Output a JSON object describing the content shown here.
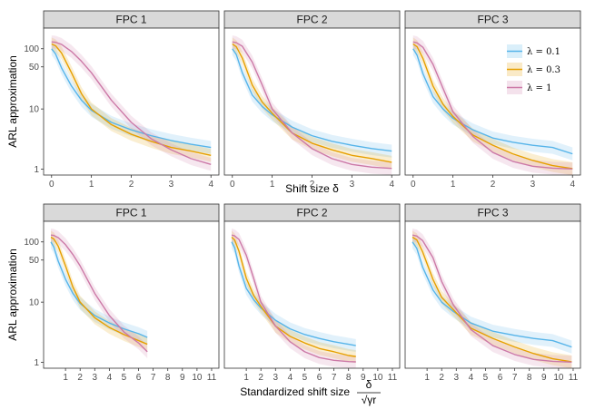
{
  "chart_data": [
    {
      "type": "line",
      "row": "top",
      "xlabel": "Shift size δ",
      "ylabel": "ARL approximation",
      "yscale": "log",
      "ylim": [
        0.8,
        220
      ],
      "xlim": [
        -0.2,
        4.2
      ],
      "xticks": [
        0,
        1,
        2,
        3,
        4
      ],
      "yticks": [
        1,
        10,
        50,
        100
      ],
      "legend": {
        "placement": "top-right",
        "entries": [
          "λ = 0.1",
          "λ = 0.3",
          "λ = 1"
        ]
      },
      "panels": [
        {
          "title": "FPC 1",
          "series": [
            {
              "name": "λ = 0.1",
              "color": "#56B4E9",
              "x": [
                0,
                0.1,
                0.25,
                0.5,
                0.75,
                1,
                1.5,
                2,
                2.5,
                3,
                3.5,
                4
              ],
              "y": [
                100,
                82,
                48,
                24,
                14,
                9.5,
                6.0,
                4.5,
                3.6,
                3.0,
                2.6,
                2.3
              ]
            },
            {
              "name": "λ = 0.3",
              "color": "#E69F00",
              "x": [
                0,
                0.1,
                0.25,
                0.5,
                0.75,
                1,
                1.5,
                2,
                2.5,
                3,
                3.5,
                4
              ],
              "y": [
                120,
                112,
                85,
                40,
                18,
                10,
                5.5,
                3.8,
                2.9,
                2.3,
                2.0,
                1.7
              ]
            },
            {
              "name": "λ = 1",
              "color": "#CC79A7",
              "x": [
                0,
                0.1,
                0.25,
                0.5,
                0.75,
                1,
                1.5,
                2,
                2.5,
                3,
                3.5,
                4
              ],
              "y": [
                130,
                128,
                118,
                90,
                62,
                40,
                14,
                6.0,
                3.2,
                2.1,
                1.5,
                1.2
              ]
            }
          ]
        },
        {
          "title": "FPC 2",
          "series": [
            {
              "name": "λ = 0.1",
              "color": "#56B4E9",
              "x": [
                0,
                0.1,
                0.25,
                0.5,
                0.75,
                1,
                1.5,
                2,
                2.5,
                3,
                3.5,
                4
              ],
              "y": [
                100,
                80,
                40,
                17,
                11,
                8.0,
                5.0,
                3.6,
                2.9,
                2.5,
                2.2,
                2.0
              ]
            },
            {
              "name": "λ = 0.3",
              "color": "#E69F00",
              "x": [
                0,
                0.1,
                0.25,
                0.5,
                0.75,
                1,
                1.5,
                2,
                2.5,
                3,
                3.5,
                4
              ],
              "y": [
                120,
                108,
                70,
                25,
                13,
                8.5,
                4.0,
                2.7,
                2.1,
                1.7,
                1.5,
                1.3
              ]
            },
            {
              "name": "λ = 1",
              "color": "#CC79A7",
              "x": [
                0,
                0.1,
                0.25,
                0.5,
                0.75,
                1,
                1.5,
                2,
                2.5,
                3,
                3.5,
                4
              ],
              "y": [
                130,
                126,
                110,
                60,
                25,
                10,
                4.0,
                2.2,
                1.5,
                1.2,
                1.08,
                1.03
              ]
            }
          ]
        },
        {
          "title": "FPC 3",
          "series": [
            {
              "name": "λ = 0.1",
              "color": "#56B4E9",
              "x": [
                0,
                0.1,
                0.25,
                0.5,
                0.75,
                1,
                1.5,
                2,
                2.5,
                3,
                3.5,
                4
              ],
              "y": [
                100,
                78,
                38,
                16,
                10,
                7.0,
                4.5,
                3.3,
                2.8,
                2.5,
                2.3,
                1.8
              ]
            },
            {
              "name": "λ = 0.3",
              "color": "#E69F00",
              "x": [
                0,
                0.1,
                0.25,
                0.5,
                0.75,
                1,
                1.5,
                2,
                2.5,
                3,
                3.5,
                4
              ],
              "y": [
                120,
                108,
                68,
                24,
                12,
                7.5,
                3.7,
                2.5,
                1.8,
                1.4,
                1.15,
                1.02
              ]
            },
            {
              "name": "λ = 1",
              "color": "#CC79A7",
              "x": [
                0,
                0.1,
                0.25,
                0.5,
                0.75,
                1,
                1.5,
                2,
                2.5,
                3,
                3.5,
                4
              ],
              "y": [
                130,
                125,
                105,
                55,
                22,
                9.0,
                3.5,
                1.9,
                1.35,
                1.12,
                1.04,
                1.01
              ]
            }
          ]
        }
      ]
    },
    {
      "type": "line",
      "row": "bottom",
      "xlabel_prefix": "Standardized shift size",
      "xlabel_fraction": {
        "numerator": "δ",
        "denominator": "√γr"
      },
      "ylabel": "ARL approximation",
      "yscale": "log",
      "ylim": [
        0.8,
        220
      ],
      "xlim": [
        -0.5,
        11.5
      ],
      "xticks": [
        1,
        2,
        3,
        4,
        5,
        6,
        7,
        8,
        9,
        10,
        11
      ],
      "yticks": [
        1,
        10,
        50,
        100
      ],
      "panels": [
        {
          "title": "FPC 1",
          "series": [
            {
              "name": "λ = 0.1",
              "color": "#56B4E9",
              "x": [
                0,
                0.2,
                0.5,
                1,
                1.5,
                2,
                3,
                4,
                5,
                6,
                6.6
              ],
              "y": [
                100,
                82,
                48,
                24,
                14,
                9.5,
                6.0,
                4.5,
                3.6,
                3.0,
                2.6
              ]
            },
            {
              "name": "λ = 0.3",
              "color": "#E69F00",
              "x": [
                0,
                0.2,
                0.5,
                1,
                1.5,
                2,
                3,
                4,
                5,
                6,
                6.6
              ],
              "y": [
                120,
                112,
                85,
                40,
                18,
                10,
                5.5,
                3.8,
                2.9,
                2.3,
                2.0
              ]
            },
            {
              "name": "λ = 1",
              "color": "#CC79A7",
              "x": [
                0,
                0.2,
                0.5,
                1,
                1.5,
                2,
                3,
                4,
                5,
                6,
                6.6
              ],
              "y": [
                130,
                128,
                118,
                90,
                62,
                40,
                14,
                6.0,
                3.2,
                2.1,
                1.5
              ]
            }
          ]
        },
        {
          "title": "FPC 2",
          "series": [
            {
              "name": "λ = 0.1",
              "color": "#56B4E9",
              "x": [
                0,
                0.2,
                0.5,
                1,
                1.5,
                2,
                3,
                4,
                5,
                6,
                7,
                8,
                8.5
              ],
              "y": [
                100,
                80,
                40,
                17,
                11,
                8.0,
                5.0,
                3.6,
                2.9,
                2.5,
                2.2,
                2.0,
                1.9
              ]
            },
            {
              "name": "λ = 0.3",
              "color": "#E69F00",
              "x": [
                0,
                0.2,
                0.5,
                1,
                1.5,
                2,
                3,
                4,
                5,
                6,
                7,
                8,
                8.5
              ],
              "y": [
                120,
                108,
                70,
                25,
                13,
                8.5,
                4.0,
                2.7,
                2.1,
                1.7,
                1.5,
                1.3,
                1.25
              ]
            },
            {
              "name": "λ = 1",
              "color": "#CC79A7",
              "x": [
                0,
                0.2,
                0.5,
                1,
                1.5,
                2,
                3,
                4,
                5,
                6,
                7,
                8,
                8.5
              ],
              "y": [
                130,
                126,
                110,
                60,
                25,
                10,
                4.0,
                2.2,
                1.5,
                1.2,
                1.08,
                1.03,
                1.02
              ]
            }
          ]
        },
        {
          "title": "FPC 3",
          "series": [
            {
              "name": "λ = 0.1",
              "color": "#56B4E9",
              "x": [
                0,
                0.3,
                0.7,
                1.4,
                2,
                2.8,
                4,
                5.5,
                7,
                8.3,
                9.6,
                10.9
              ],
              "y": [
                100,
                78,
                38,
                16,
                10,
                7.0,
                4.5,
                3.3,
                2.8,
                2.5,
                2.3,
                1.8
              ]
            },
            {
              "name": "λ = 0.3",
              "color": "#E69F00",
              "x": [
                0,
                0.3,
                0.7,
                1.4,
                2,
                2.8,
                4,
                5.5,
                7,
                8.3,
                9.6,
                10.9
              ],
              "y": [
                120,
                108,
                68,
                24,
                12,
                7.5,
                3.7,
                2.5,
                1.8,
                1.4,
                1.15,
                1.02
              ]
            },
            {
              "name": "λ = 1",
              "color": "#CC79A7",
              "x": [
                0,
                0.3,
                0.7,
                1.4,
                2,
                2.8,
                4,
                5.5,
                7,
                8.3,
                9.6,
                10.9
              ],
              "y": [
                130,
                125,
                105,
                55,
                22,
                9.0,
                3.5,
                1.9,
                1.35,
                1.12,
                1.04,
                1.01
              ]
            }
          ]
        }
      ]
    }
  ]
}
